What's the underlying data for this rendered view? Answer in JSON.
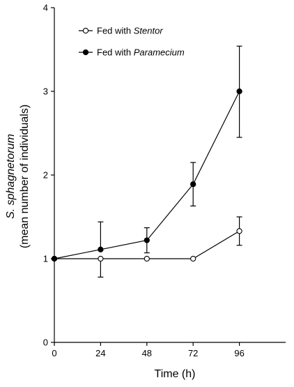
{
  "chart_data": {
    "type": "line",
    "title": "",
    "xlabel": "Time (h)",
    "ylabel_species": "S. sphagnetorum",
    "ylabel_detail": "(mean number of individuals)",
    "x": [
      0,
      24,
      48,
      72,
      96
    ],
    "x_ticks": [
      "0",
      "24",
      "48",
      "72",
      "96"
    ],
    "y_ticks": [
      "0",
      "1",
      "2",
      "3",
      "4"
    ],
    "xlim": [
      0,
      120
    ],
    "ylim": [
      0,
      4
    ],
    "grid": false,
    "legend_position": "top-left",
    "series": [
      {
        "name": "Fed with Stentor",
        "legend_prefix": "Fed with ",
        "legend_italic": "Stentor",
        "marker": "open-circle",
        "values": [
          1.0,
          1.0,
          1.0,
          1.0,
          1.33
        ],
        "error_low": [
          0,
          0.22,
          0,
          0,
          0.17
        ],
        "error_high": [
          0,
          0,
          0,
          0,
          0.17
        ]
      },
      {
        "name": "Fed with Paramecium",
        "legend_prefix": "Fed with ",
        "legend_italic": "Paramecium",
        "marker": "filled-circle",
        "values": [
          1.0,
          1.11,
          1.22,
          1.89,
          3.0
        ],
        "error_low": [
          0,
          0,
          0.15,
          0.26,
          0.55
        ],
        "error_high": [
          0,
          0.33,
          0.15,
          0.26,
          0.54
        ]
      }
    ],
    "colors": {
      "line": "#000000",
      "open_marker_fill": "#ffffff",
      "filled_marker_fill": "#000000"
    }
  }
}
